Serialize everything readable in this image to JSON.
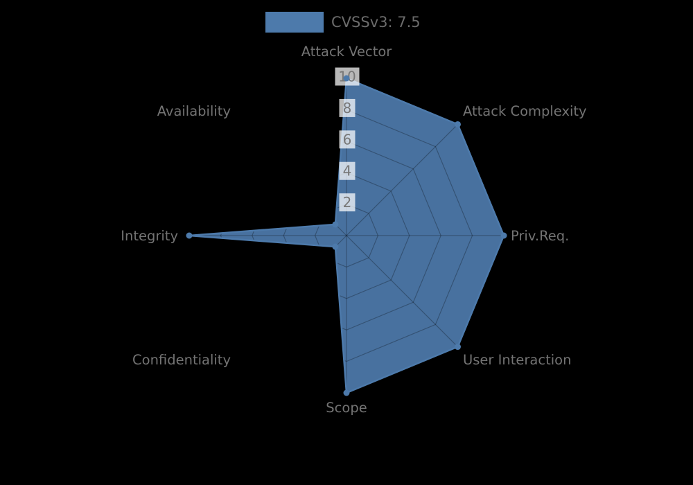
{
  "figure": {
    "background": "#000000"
  },
  "legend": {
    "label": "CVSSv3: 7.5",
    "swatch_color": "#4d7aab",
    "position": "top-center"
  },
  "chart_data": {
    "type": "radar",
    "title": "",
    "legend_entries": [
      {
        "label": "CVSSv3: 7.5",
        "color": "#4d7aab"
      }
    ],
    "axes": [
      "Attack Vector",
      "Attack Complexity",
      "Priv.Req.",
      "User Interaction",
      "Scope",
      "Confidentiality",
      "Integrity",
      "Availability"
    ],
    "series": [
      {
        "name": "CVSSv3: 7.5",
        "color": "#4d7aab",
        "values": [
          10,
          10,
          10,
          10,
          10,
          1,
          10,
          1
        ]
      }
    ],
    "radial_ticks": [
      2,
      4,
      6,
      8,
      10
    ],
    "rlim": [
      0,
      10
    ],
    "grid": {
      "shape": "polygon-web",
      "rings": 5,
      "spokes": 8,
      "color": "rgba(0,0,0,0.27)",
      "note": "gridlines visible only where they overlap the filled polygon"
    },
    "style": {
      "label_color": "#737373",
      "tick_color": "#777777",
      "tick_box_color": "rgba(255,255,255,0.72)",
      "fill_opacity": 0.93,
      "line_width": 2.5,
      "marker_radius": 4.5,
      "axis_label_font_px": 19.5,
      "tick_font_px": 20
    }
  }
}
